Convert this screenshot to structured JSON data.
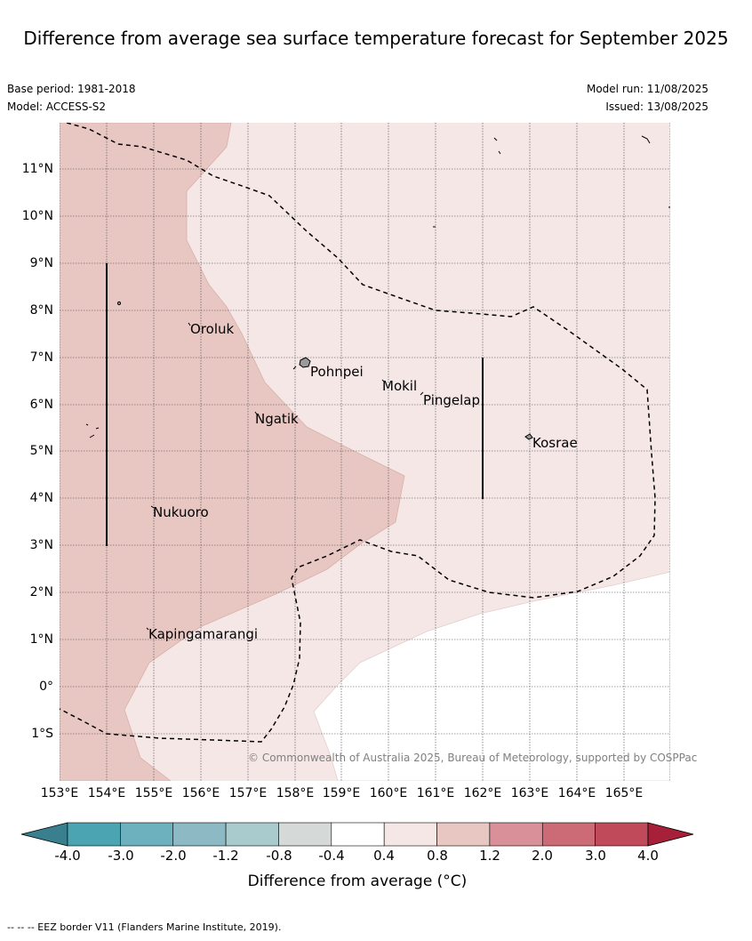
{
  "title": "Difference from average sea surface temperature forecast for September 2025",
  "meta": {
    "base_period": "Base period: 1981-2018",
    "model": "Model: ACCESS-S2",
    "model_run": "Model run: 11/08/2025",
    "issued": "Issued: 13/08/2025"
  },
  "map": {
    "lat_labels": [
      "11°N",
      "10°N",
      "9°N",
      "8°N",
      "7°N",
      "6°N",
      "5°N",
      "4°N",
      "3°N",
      "2°N",
      "1°N",
      "0°",
      "1°S"
    ],
    "lon_labels": [
      "153°E",
      "154°E",
      "155°E",
      "156°E",
      "157°E",
      "158°E",
      "159°E",
      "160°E",
      "161°E",
      "162°E",
      "163°E",
      "164°E",
      "165°E"
    ],
    "places": [
      "Oroluk",
      "Pohnpei",
      "Mokil",
      "Pingelap",
      "Ngatik",
      "Kosrae",
      "Nukuoro",
      "Kapingamarangi"
    ],
    "copyright": "© Commonwealth of Australia 2025, Bureau of Meteorology, supported by COSPPac"
  },
  "legend": {
    "title": "Difference from average (°C)",
    "ticks": [
      "-4.0",
      "-3.0",
      "-2.0",
      "-1.2",
      "-0.8",
      "-0.4",
      "0.4",
      "0.8",
      "1.2",
      "2.0",
      "3.0",
      "4.0"
    ],
    "colors": [
      "#3a7f8d",
      "#4aa4b2",
      "#6db0be",
      "#8db9c4",
      "#aacbce",
      "#d5d9d8",
      "#ffffff",
      "#f5e7e6",
      "#e8c7c3",
      "#d99098",
      "#cc6b75",
      "#c04a5a",
      "#a7203a"
    ]
  },
  "footnote": "--  --  -- EEZ border V11 (Flanders Marine Institute, 2019)."
}
